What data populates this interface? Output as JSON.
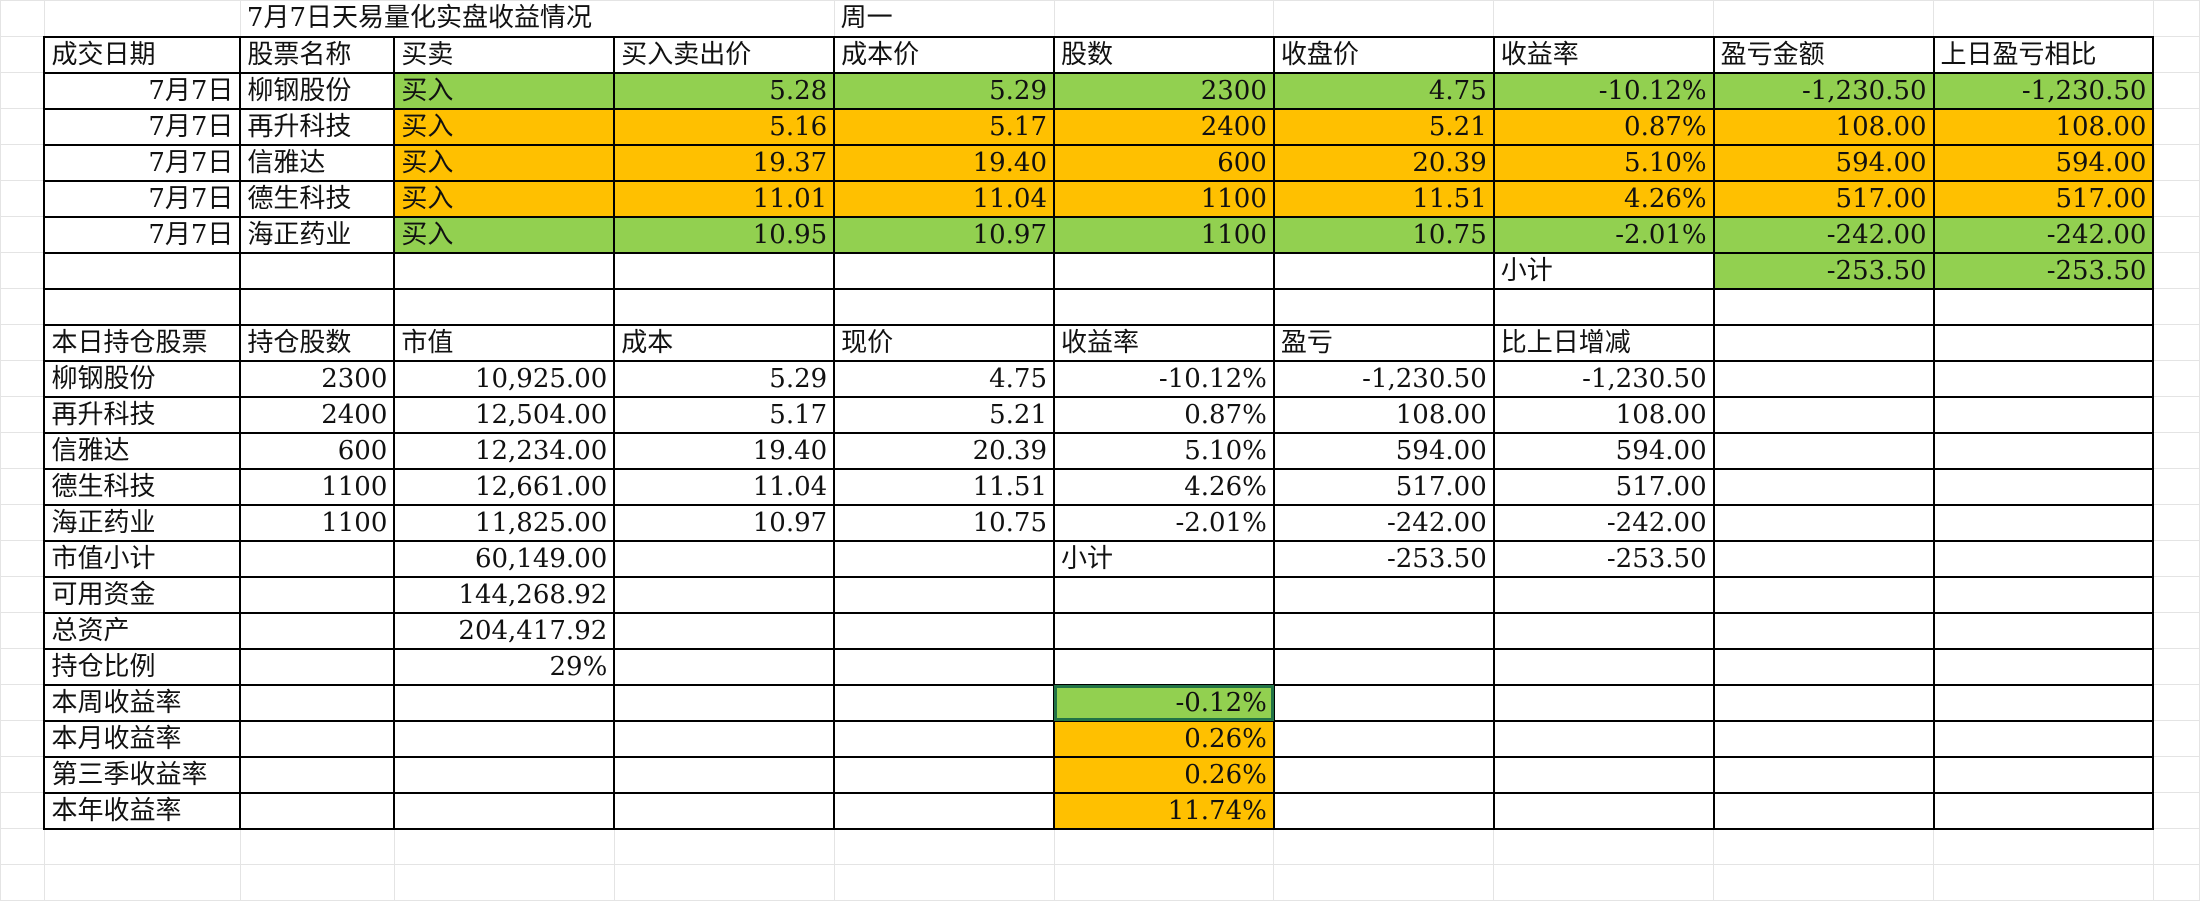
{
  "title": "7月7日天易量化实盘收益情况",
  "weekday": "周一",
  "trades": {
    "headers": [
      "成交日期",
      "股票名称",
      "买卖",
      "买入卖出价",
      "成本价",
      "股数",
      "收盘价",
      "收益率",
      "盈亏金额",
      "上日盈亏相比"
    ],
    "rows": [
      {
        "date": "7月7日",
        "name": "柳钢股份",
        "action": "买入",
        "price": "5.28",
        "cost": "5.29",
        "shares": "2300",
        "close": "4.75",
        "rate": "-10.12%",
        "pnl": "-1,230.50",
        "vs": "-1,230.50",
        "color": "#92d050"
      },
      {
        "date": "7月7日",
        "name": "再升科技",
        "action": "买入",
        "price": "5.16",
        "cost": "5.17",
        "shares": "2400",
        "close": "5.21",
        "rate": "0.87%",
        "pnl": "108.00",
        "vs": "108.00",
        "color": "#ffc000"
      },
      {
        "date": "7月7日",
        "name": "信雅达",
        "action": "买入",
        "price": "19.37",
        "cost": "19.40",
        "shares": "600",
        "close": "20.39",
        "rate": "5.10%",
        "pnl": "594.00",
        "vs": "594.00",
        "color": "#ffc000"
      },
      {
        "date": "7月7日",
        "name": "德生科技",
        "action": "买入",
        "price": "11.01",
        "cost": "11.04",
        "shares": "1100",
        "close": "11.51",
        "rate": "4.26%",
        "pnl": "517.00",
        "vs": "517.00",
        "color": "#ffc000"
      },
      {
        "date": "7月7日",
        "name": "海正药业",
        "action": "买入",
        "price": "10.95",
        "cost": "10.97",
        "shares": "1100",
        "close": "10.75",
        "rate": "-2.01%",
        "pnl": "-242.00",
        "vs": "-242.00",
        "color": "#92d050"
      }
    ],
    "subtotal_label": "小计",
    "subtotal_pnl": "-253.50",
    "subtotal_vs": "-253.50"
  },
  "holdings": {
    "headers": [
      "本日持仓股票",
      "持仓股数",
      "市值",
      "成本",
      "现价",
      "收益率",
      "盈亏",
      "比上日增减"
    ],
    "rows": [
      {
        "name": "柳钢股份",
        "shares": "2300",
        "value": "10,925.00",
        "cost": "5.29",
        "price": "4.75",
        "rate": "-10.12%",
        "pnl": "-1,230.50",
        "delta": "-1,230.50"
      },
      {
        "name": "再升科技",
        "shares": "2400",
        "value": "12,504.00",
        "cost": "5.17",
        "price": "5.21",
        "rate": "0.87%",
        "pnl": "108.00",
        "delta": "108.00"
      },
      {
        "name": "信雅达",
        "shares": "600",
        "value": "12,234.00",
        "cost": "19.40",
        "price": "20.39",
        "rate": "5.10%",
        "pnl": "594.00",
        "delta": "594.00"
      },
      {
        "name": "德生科技",
        "shares": "1100",
        "value": "12,661.00",
        "cost": "11.04",
        "price": "11.51",
        "rate": "4.26%",
        "pnl": "517.00",
        "delta": "517.00"
      },
      {
        "name": "海正药业",
        "shares": "1100",
        "value": "11,825.00",
        "cost": "10.97",
        "price": "10.75",
        "rate": "-2.01%",
        "pnl": "-242.00",
        "delta": "-242.00"
      }
    ],
    "mv_label": "市值小计",
    "mv_value": "60,149.00",
    "sub_label": "小计",
    "sub_pnl": "-253.50",
    "sub_delta": "-253.50",
    "cash_label": "可用资金",
    "cash_value": "144,268.92",
    "total_label": "总资产",
    "total_value": "204,417.92",
    "ratio_label": "持仓比例",
    "ratio_value": "29%"
  },
  "returns": [
    {
      "label": "本周收益率",
      "value": "-0.12%",
      "color": "#92d050"
    },
    {
      "label": "本月收益率",
      "value": "0.26%",
      "color": "#ffc000"
    },
    {
      "label": "第三季收益率",
      "value": "0.26%",
      "color": "#ffc000"
    },
    {
      "label": "本年收益率",
      "value": "11.74%",
      "color": "#ffc000"
    }
  ]
}
